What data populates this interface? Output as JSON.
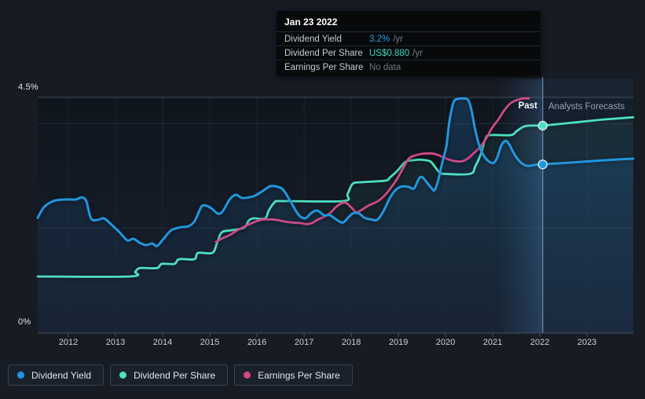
{
  "header_tooltip": {
    "title": "Jan 23 2022",
    "rows": [
      {
        "label": "Dividend Yield",
        "value": "3.2%",
        "suffix": "/yr",
        "value_color": "#2d9fe8"
      },
      {
        "label": "Dividend Per Share",
        "value": "US$0.880",
        "suffix": "/yr",
        "value_color": "#46d8c2"
      },
      {
        "label": "Earnings Per Share",
        "value": "No data",
        "suffix": "",
        "value_color": "#6e747d"
      }
    ]
  },
  "annotations": {
    "past_label": "Past",
    "forecast_label": "Analysts Forecasts"
  },
  "legend": [
    {
      "label": "Dividend Yield",
      "color": "#1e97e4"
    },
    {
      "label": "Dividend Per Share",
      "color": "#4ce0c3"
    },
    {
      "label": "Earnings Per Share",
      "color": "#d1478c"
    }
  ],
  "chart_data": {
    "type": "line",
    "x_range": [
      2011.35,
      2023.98
    ],
    "y_range": [
      0,
      4.5
    ],
    "y_axis_labels": [
      {
        "text": "4.5%",
        "value": 4.5
      },
      {
        "text": "0%",
        "value": 0
      }
    ],
    "gridlines": [
      {
        "value": 4.5,
        "major": true
      },
      {
        "value": 4.0,
        "major": false
      },
      {
        "value": 2.0,
        "major": false
      },
      {
        "value": 0.0,
        "major": true
      }
    ],
    "x_ticks": [
      2012,
      2013,
      2014,
      2015,
      2016,
      2017,
      2018,
      2019,
      2020,
      2021,
      2022,
      2023
    ],
    "x_tick_labels": [
      "2012",
      "2013",
      "2014",
      "2015",
      "2016",
      "2017",
      "2018",
      "2019",
      "2020",
      "2021",
      "2022",
      "2023"
    ],
    "divider_year": 2022.06,
    "highlight_band": [
      2021.08,
      2022.06
    ],
    "legend_position": "bottom-left",
    "grid": true,
    "series": [
      {
        "name": "Dividend Yield",
        "unit": "%",
        "color": "#2196de",
        "has_area": true,
        "past": [
          [
            2011.35,
            2.2
          ],
          [
            2011.48,
            2.4
          ],
          [
            2011.68,
            2.52
          ],
          [
            2011.92,
            2.55
          ],
          [
            2012.15,
            2.55
          ],
          [
            2012.28,
            2.59
          ],
          [
            2012.38,
            2.52
          ],
          [
            2012.48,
            2.19
          ],
          [
            2012.62,
            2.16
          ],
          [
            2012.75,
            2.19
          ],
          [
            2012.88,
            2.1
          ],
          [
            2013.08,
            1.93
          ],
          [
            2013.25,
            1.77
          ],
          [
            2013.38,
            1.8
          ],
          [
            2013.52,
            1.72
          ],
          [
            2013.65,
            1.68
          ],
          [
            2013.78,
            1.71
          ],
          [
            2013.88,
            1.66
          ],
          [
            2014.02,
            1.8
          ],
          [
            2014.18,
            1.96
          ],
          [
            2014.38,
            2.02
          ],
          [
            2014.55,
            2.04
          ],
          [
            2014.68,
            2.14
          ],
          [
            2014.82,
            2.41
          ],
          [
            2014.93,
            2.43
          ],
          [
            2015.05,
            2.37
          ],
          [
            2015.17,
            2.28
          ],
          [
            2015.27,
            2.32
          ],
          [
            2015.42,
            2.55
          ],
          [
            2015.55,
            2.64
          ],
          [
            2015.68,
            2.58
          ],
          [
            2015.82,
            2.59
          ],
          [
            2015.95,
            2.62
          ],
          [
            2016.12,
            2.71
          ],
          [
            2016.27,
            2.8
          ],
          [
            2016.4,
            2.8
          ],
          [
            2016.55,
            2.74
          ],
          [
            2016.72,
            2.5
          ],
          [
            2016.88,
            2.26
          ],
          [
            2017.02,
            2.19
          ],
          [
            2017.15,
            2.29
          ],
          [
            2017.28,
            2.34
          ],
          [
            2017.42,
            2.25
          ],
          [
            2017.55,
            2.25
          ],
          [
            2017.68,
            2.17
          ],
          [
            2017.82,
            2.11
          ],
          [
            2017.95,
            2.22
          ],
          [
            2018.05,
            2.29
          ],
          [
            2018.17,
            2.28
          ],
          [
            2018.28,
            2.2
          ],
          [
            2018.42,
            2.17
          ],
          [
            2018.55,
            2.16
          ],
          [
            2018.68,
            2.32
          ],
          [
            2018.82,
            2.58
          ],
          [
            2018.95,
            2.74
          ],
          [
            2019.08,
            2.8
          ],
          [
            2019.22,
            2.79
          ],
          [
            2019.33,
            2.76
          ],
          [
            2019.43,
            2.94
          ],
          [
            2019.5,
            2.98
          ],
          [
            2019.6,
            2.88
          ],
          [
            2019.7,
            2.77
          ],
          [
            2019.77,
            2.73
          ],
          [
            2019.85,
            2.94
          ],
          [
            2019.93,
            3.25
          ],
          [
            2020.02,
            3.58
          ],
          [
            2020.08,
            4.03
          ],
          [
            2020.17,
            4.41
          ],
          [
            2020.27,
            4.47
          ],
          [
            2020.38,
            4.48
          ],
          [
            2020.48,
            4.45
          ],
          [
            2020.55,
            4.26
          ],
          [
            2020.63,
            3.88
          ],
          [
            2020.73,
            3.54
          ],
          [
            2020.83,
            3.36
          ],
          [
            2020.93,
            3.27
          ],
          [
            2021.02,
            3.25
          ],
          [
            2021.1,
            3.36
          ],
          [
            2021.18,
            3.58
          ],
          [
            2021.27,
            3.67
          ],
          [
            2021.35,
            3.6
          ],
          [
            2021.45,
            3.43
          ],
          [
            2021.55,
            3.3
          ],
          [
            2021.65,
            3.22
          ],
          [
            2021.77,
            3.19
          ],
          [
            2021.88,
            3.21
          ],
          [
            2022.06,
            3.22
          ]
        ],
        "forecast": [
          [
            2022.06,
            3.22
          ],
          [
            2022.72,
            3.26
          ],
          [
            2023.38,
            3.3
          ],
          [
            2023.98,
            3.33
          ]
        ]
      },
      {
        "name": "Dividend Per Share",
        "unit": "US$ (plotted on yield axis)",
        "color": "#4fdfc3",
        "has_area": true,
        "past": [
          [
            2011.35,
            1.08
          ],
          [
            2013.3,
            1.08
          ],
          [
            2013.42,
            1.17
          ],
          [
            2013.52,
            1.24
          ],
          [
            2013.88,
            1.24
          ],
          [
            2013.98,
            1.32
          ],
          [
            2014.25,
            1.32
          ],
          [
            2014.35,
            1.41
          ],
          [
            2014.67,
            1.41
          ],
          [
            2014.75,
            1.53
          ],
          [
            2015.05,
            1.53
          ],
          [
            2015.15,
            1.71
          ],
          [
            2015.25,
            1.92
          ],
          [
            2015.45,
            1.96
          ],
          [
            2015.72,
            2.01
          ],
          [
            2015.82,
            2.14
          ],
          [
            2015.92,
            2.19
          ],
          [
            2016.17,
            2.19
          ],
          [
            2016.25,
            2.34
          ],
          [
            2016.38,
            2.5
          ],
          [
            2016.55,
            2.52
          ],
          [
            2017.83,
            2.52
          ],
          [
            2017.92,
            2.65
          ],
          [
            2018.03,
            2.85
          ],
          [
            2018.22,
            2.88
          ],
          [
            2018.72,
            2.91
          ],
          [
            2018.82,
            2.97
          ],
          [
            2018.98,
            3.1
          ],
          [
            2019.15,
            3.27
          ],
          [
            2019.32,
            3.3
          ],
          [
            2019.48,
            3.31
          ],
          [
            2019.67,
            3.28
          ],
          [
            2019.77,
            3.18
          ],
          [
            2019.87,
            3.07
          ],
          [
            2019.98,
            3.04
          ],
          [
            2020.52,
            3.04
          ],
          [
            2020.63,
            3.18
          ],
          [
            2020.75,
            3.42
          ],
          [
            2020.85,
            3.72
          ],
          [
            2020.95,
            3.78
          ],
          [
            2021.38,
            3.78
          ],
          [
            2021.5,
            3.85
          ],
          [
            2021.63,
            3.93
          ],
          [
            2021.75,
            3.96
          ],
          [
            2022.06,
            3.96
          ]
        ],
        "forecast": [
          [
            2022.06,
            3.96
          ],
          [
            2022.72,
            4.02
          ],
          [
            2023.38,
            4.08
          ],
          [
            2023.98,
            4.12
          ]
        ]
      },
      {
        "name": "Earnings Per Share",
        "unit": "US$ (plotted on yield axis)",
        "color": "#ce4a87",
        "has_area": false,
        "past": [
          [
            2015.13,
            1.74
          ],
          [
            2015.27,
            1.81
          ],
          [
            2015.42,
            1.87
          ],
          [
            2015.58,
            1.96
          ],
          [
            2015.75,
            2.04
          ],
          [
            2015.92,
            2.11
          ],
          [
            2016.08,
            2.16
          ],
          [
            2016.25,
            2.17
          ],
          [
            2016.42,
            2.16
          ],
          [
            2016.58,
            2.13
          ],
          [
            2016.75,
            2.11
          ],
          [
            2016.92,
            2.1
          ],
          [
            2017.05,
            2.08
          ],
          [
            2017.17,
            2.1
          ],
          [
            2017.28,
            2.16
          ],
          [
            2017.42,
            2.22
          ],
          [
            2017.55,
            2.29
          ],
          [
            2017.68,
            2.41
          ],
          [
            2017.78,
            2.47
          ],
          [
            2017.88,
            2.49
          ],
          [
            2018.0,
            2.4
          ],
          [
            2018.1,
            2.31
          ],
          [
            2018.2,
            2.34
          ],
          [
            2018.32,
            2.41
          ],
          [
            2018.43,
            2.46
          ],
          [
            2018.57,
            2.52
          ],
          [
            2018.7,
            2.62
          ],
          [
            2018.83,
            2.76
          ],
          [
            2018.97,
            2.94
          ],
          [
            2019.1,
            3.15
          ],
          [
            2019.22,
            3.33
          ],
          [
            2019.35,
            3.39
          ],
          [
            2019.48,
            3.42
          ],
          [
            2019.63,
            3.43
          ],
          [
            2019.77,
            3.42
          ],
          [
            2019.92,
            3.37
          ],
          [
            2020.08,
            3.31
          ],
          [
            2020.22,
            3.28
          ],
          [
            2020.35,
            3.28
          ],
          [
            2020.47,
            3.33
          ],
          [
            2020.58,
            3.42
          ],
          [
            2020.72,
            3.54
          ],
          [
            2020.85,
            3.7
          ],
          [
            2020.98,
            3.91
          ],
          [
            2021.12,
            4.08
          ],
          [
            2021.25,
            4.26
          ],
          [
            2021.38,
            4.39
          ],
          [
            2021.52,
            4.45
          ],
          [
            2021.65,
            4.48
          ],
          [
            2021.77,
            4.48
          ]
        ]
      }
    ],
    "markers": [
      {
        "year": 2022.06,
        "value": 3.96,
        "color": "#4fdfc3",
        "series": "Dividend Per Share"
      },
      {
        "year": 2022.06,
        "value": 3.22,
        "color": "#2196de",
        "series": "Dividend Yield"
      }
    ]
  }
}
